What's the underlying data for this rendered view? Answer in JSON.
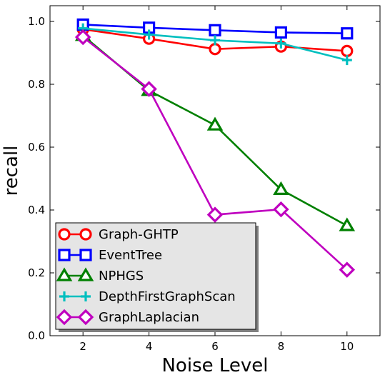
{
  "chart_data": {
    "type": "line",
    "title": "",
    "xlabel": "Noise Level",
    "ylabel": "recall",
    "xlim": [
      1,
      11
    ],
    "ylim": [
      0.0,
      1.05
    ],
    "x": [
      2,
      4,
      6,
      8,
      10
    ],
    "xticks": [
      "2",
      "4",
      "6",
      "8",
      "10"
    ],
    "yticks": [
      "0.0",
      "0.2",
      "0.4",
      "0.6",
      "0.8",
      "1.0"
    ],
    "grid": false,
    "legend_position": "lower-left",
    "series": [
      {
        "name": "Graph-GHTP",
        "values": [
          0.975,
          0.945,
          0.912,
          0.92,
          0.906
        ],
        "color": "#ff0000",
        "marker": "circle"
      },
      {
        "name": "EventTree",
        "values": [
          0.99,
          0.98,
          0.972,
          0.965,
          0.962
        ],
        "color": "#0000ff",
        "marker": "square"
      },
      {
        "name": "NPHGS",
        "values": [
          0.955,
          0.78,
          0.67,
          0.465,
          0.35
        ],
        "color": "#008000",
        "marker": "triangle"
      },
      {
        "name": "DepthFirstGraphScan",
        "values": [
          0.978,
          0.958,
          0.94,
          0.93,
          0.877
        ],
        "color": "#00bfbf",
        "marker": "plus"
      },
      {
        "name": "GraphLaplacian",
        "values": [
          0.95,
          0.785,
          0.385,
          0.402,
          0.21
        ],
        "color": "#bf00bf",
        "marker": "diamond"
      }
    ]
  }
}
